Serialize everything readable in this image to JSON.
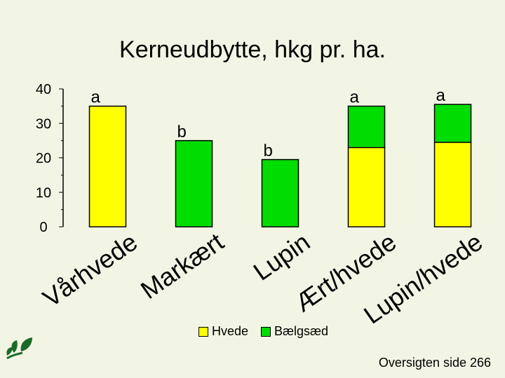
{
  "chart_data": {
    "type": "bar",
    "title": "Kerneudbytte, hkg pr. ha.",
    "categories": [
      "Vårhvede",
      "Markært",
      "Lupin",
      "Ært/hvede",
      "Lupin/hvede"
    ],
    "series": [
      {
        "name": "Hvede",
        "color": "#ffff00",
        "values": [
          35,
          0,
          0,
          23,
          24.5
        ]
      },
      {
        "name": "Bælgsæd",
        "color": "#00dd00",
        "values": [
          0,
          25,
          19.5,
          12,
          11
        ]
      }
    ],
    "significance_labels": [
      "a",
      "b",
      "b",
      "a",
      "a"
    ],
    "ylim": [
      0,
      40
    ],
    "yticks": [
      0,
      10,
      20,
      30,
      40
    ],
    "legend_position": "bottom",
    "grid": false
  },
  "legend": {
    "hvede_label": "Hvede",
    "baelgsaed_label": "Bælgsæd"
  },
  "footer": {
    "text": "Oversigten side 266"
  },
  "logo": {
    "icon": "leaf-logo-icon",
    "color": "#1a6b2a"
  }
}
